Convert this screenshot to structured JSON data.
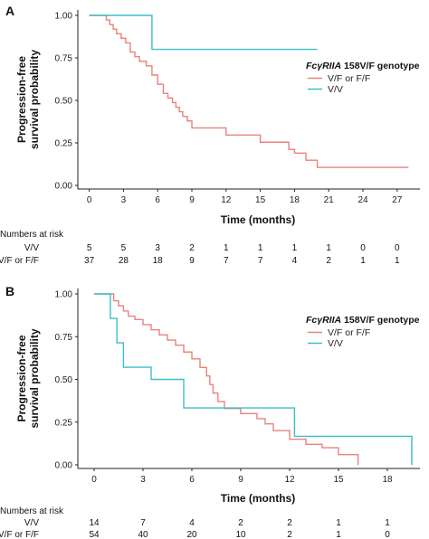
{
  "panels": [
    {
      "label": "A",
      "legend": {
        "title_italic": "FcγRIIA",
        "title_rest": " 158V/F genotype",
        "entries": [
          "V/F or F/F",
          "V/V"
        ]
      },
      "risk": {
        "header": "Numbers at risk",
        "rows": [
          {
            "label": "V/V",
            "values": [
              "5",
              "5",
              "3",
              "2",
              "1",
              "1",
              "1",
              "1",
              "0",
              "0"
            ]
          },
          {
            "label": "V/F or F/F",
            "values": [
              "37",
              "28",
              "18",
              "9",
              "7",
              "7",
              "4",
              "2",
              "1",
              "1"
            ]
          }
        ]
      }
    },
    {
      "label": "B",
      "legend": {
        "title_italic": "FcγRIIA",
        "title_rest": " 158V/F genotype",
        "entries": [
          "V/F or F/F",
          "V/V"
        ]
      },
      "risk": {
        "header": "Numbers at risk",
        "rows": [
          {
            "label": "V/V",
            "values": [
              "14",
              "7",
              "4",
              "2",
              "2",
              "1",
              "1"
            ]
          },
          {
            "label": "V/F or F/F",
            "values": [
              "54",
              "40",
              "20",
              "10",
              "2",
              "1",
              "0"
            ]
          }
        ]
      }
    }
  ],
  "chart_data": [
    {
      "type": "line",
      "step": true,
      "ylabel": "Progression-free\nsurvival probability",
      "xlabel": "Time (months)",
      "xlim": [
        -1,
        29
      ],
      "ylim": [
        0,
        1
      ],
      "xticks": [
        0,
        3,
        6,
        9,
        12,
        15,
        18,
        21,
        24,
        27
      ],
      "yticks": [
        "0.00",
        "0.25",
        "0.50",
        "0.75",
        "1.00"
      ],
      "series": [
        {
          "name": "V/F or F/F",
          "color": "#e8837e",
          "x": [
            0,
            1.5,
            1.8,
            2.1,
            2.4,
            2.8,
            3.2,
            3.6,
            4.0,
            4.4,
            5.0,
            5.5,
            6.0,
            6.5,
            6.9,
            7.3,
            7.6,
            7.9,
            8.2,
            8.6,
            9.0,
            12.0,
            15.0,
            17.5,
            18.0,
            19.0,
            20.0,
            28.0
          ],
          "y": [
            1.0,
            0.973,
            0.946,
            0.919,
            0.892,
            0.865,
            0.838,
            0.784,
            0.757,
            0.73,
            0.703,
            0.649,
            0.595,
            0.541,
            0.514,
            0.487,
            0.46,
            0.433,
            0.406,
            0.379,
            0.338,
            0.296,
            0.254,
            0.212,
            0.19,
            0.148,
            0.106,
            0.106
          ]
        },
        {
          "name": "V/V",
          "color": "#3bbfc8",
          "x": [
            0,
            5.5,
            20.0
          ],
          "y": [
            1.0,
            0.8,
            0.8
          ]
        }
      ]
    },
    {
      "type": "line",
      "step": true,
      "ylabel": "Progression-free\nsurvival probability",
      "xlabel": "Time (months)",
      "xlim": [
        -1,
        20
      ],
      "ylim": [
        0,
        1
      ],
      "xticks": [
        0,
        3,
        6,
        9,
        12,
        15,
        18
      ],
      "yticks": [
        "0.00",
        "0.25",
        "0.50",
        "0.75",
        "1.00"
      ],
      "series": [
        {
          "name": "V/F or F/F",
          "color": "#e8837e",
          "x": [
            0,
            1.2,
            1.5,
            1.8,
            2.1,
            2.5,
            3.0,
            3.5,
            4.0,
            4.5,
            5.0,
            5.5,
            6.0,
            6.5,
            6.9,
            7.1,
            7.3,
            7.6,
            8.0,
            9.0,
            10.0,
            10.5,
            11.0,
            12.0,
            13.0,
            14.0,
            15.0,
            16.2
          ],
          "y": [
            1.0,
            0.96,
            0.93,
            0.9,
            0.87,
            0.85,
            0.82,
            0.79,
            0.76,
            0.73,
            0.7,
            0.66,
            0.62,
            0.57,
            0.52,
            0.47,
            0.42,
            0.37,
            0.33,
            0.3,
            0.27,
            0.24,
            0.2,
            0.15,
            0.12,
            0.1,
            0.06,
            0.0
          ]
        },
        {
          "name": "V/V",
          "color": "#3bbfc8",
          "x": [
            0,
            1.0,
            1.4,
            1.8,
            3.5,
            5.5,
            12.3,
            19.5
          ],
          "y": [
            1.0,
            0.857,
            0.714,
            0.571,
            0.5,
            0.333,
            0.167,
            0.0
          ]
        }
      ]
    }
  ]
}
